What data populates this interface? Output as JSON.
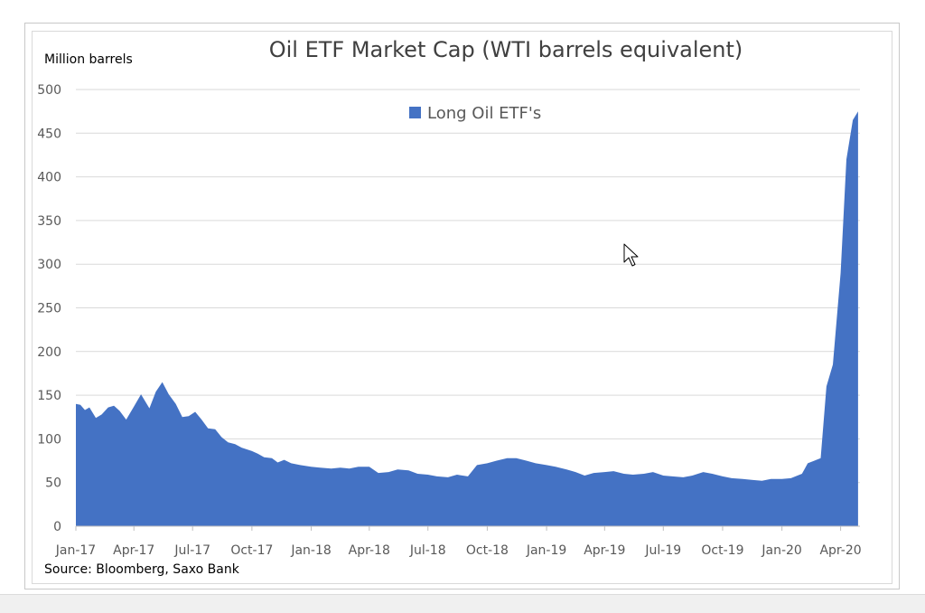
{
  "chart_data": {
    "type": "area",
    "title": "Oil ETF Market Cap (WTI barrels equivalent)",
    "ylabel": "Million barrels",
    "source": "Source: Bloomberg, Saxo Bank",
    "ylim": [
      0,
      500
    ],
    "yticks": [
      0,
      50,
      100,
      150,
      200,
      250,
      300,
      350,
      400,
      450,
      500
    ],
    "xlim": [
      "2017-01-01",
      "2020-05-01"
    ],
    "xtick_labels": [
      "Jan-17",
      "Apr-17",
      "Jul-17",
      "Oct-17",
      "Jan-18",
      "Apr-18",
      "Jul-18",
      "Oct-18",
      "Jan-19",
      "Apr-19",
      "Jul-19",
      "Oct-19",
      "Jan-20",
      "Apr-20"
    ],
    "xtick_dates": [
      "2017-01-01",
      "2017-04-01",
      "2017-07-01",
      "2017-10-01",
      "2018-01-01",
      "2018-04-01",
      "2018-07-01",
      "2018-10-01",
      "2019-01-01",
      "2019-04-01",
      "2019-07-01",
      "2019-10-01",
      "2020-01-01",
      "2020-04-01"
    ],
    "grid": true,
    "legend_position": "top-center",
    "series": [
      {
        "name": "Long Oil ETF's",
        "color": "#4472C4",
        "x": [
          "2017-01-01",
          "2017-01-08",
          "2017-01-15",
          "2017-01-22",
          "2017-02-01",
          "2017-02-10",
          "2017-02-20",
          "2017-03-01",
          "2017-03-10",
          "2017-03-20",
          "2017-04-01",
          "2017-04-12",
          "2017-04-25",
          "2017-05-05",
          "2017-05-15",
          "2017-05-25",
          "2017-06-05",
          "2017-06-15",
          "2017-06-25",
          "2017-07-05",
          "2017-07-15",
          "2017-07-25",
          "2017-08-05",
          "2017-08-15",
          "2017-08-25",
          "2017-09-05",
          "2017-09-15",
          "2017-10-01",
          "2017-10-10",
          "2017-10-20",
          "2017-11-01",
          "2017-11-10",
          "2017-11-20",
          "2017-12-01",
          "2017-12-15",
          "2018-01-01",
          "2018-01-15",
          "2018-02-01",
          "2018-02-15",
          "2018-03-01",
          "2018-03-15",
          "2018-04-01",
          "2018-04-15",
          "2018-05-01",
          "2018-05-15",
          "2018-06-01",
          "2018-06-15",
          "2018-07-01",
          "2018-07-15",
          "2018-08-01",
          "2018-08-15",
          "2018-09-01",
          "2018-09-15",
          "2018-10-01",
          "2018-10-15",
          "2018-11-01",
          "2018-11-15",
          "2018-12-01",
          "2018-12-15",
          "2019-01-01",
          "2019-01-15",
          "2019-02-01",
          "2019-02-15",
          "2019-03-01",
          "2019-03-15",
          "2019-04-01",
          "2019-04-15",
          "2019-05-01",
          "2019-05-15",
          "2019-06-01",
          "2019-06-15",
          "2019-07-01",
          "2019-07-15",
          "2019-08-01",
          "2019-08-15",
          "2019-09-01",
          "2019-09-15",
          "2019-10-01",
          "2019-10-15",
          "2019-11-01",
          "2019-11-15",
          "2019-12-01",
          "2019-12-15",
          "2020-01-01",
          "2020-01-15",
          "2020-02-01",
          "2020-02-10",
          "2020-02-20",
          "2020-03-01",
          "2020-03-10",
          "2020-03-20",
          "2020-04-01",
          "2020-04-10",
          "2020-04-20",
          "2020-04-28"
        ],
        "y": [
          140,
          139,
          133,
          136,
          124,
          128,
          136,
          138,
          132,
          122,
          137,
          151,
          135,
          154,
          165,
          151,
          140,
          125,
          126,
          131,
          122,
          112,
          111,
          102,
          96,
          94,
          90,
          86,
          83,
          79,
          78,
          73,
          76,
          72,
          70,
          68,
          67,
          66,
          67,
          66,
          68,
          68,
          61,
          62,
          65,
          64,
          60,
          59,
          57,
          56,
          59,
          57,
          70,
          72,
          75,
          78,
          78,
          75,
          72,
          70,
          68,
          65,
          62,
          58,
          61,
          62,
          63,
          60,
          59,
          60,
          62,
          58,
          57,
          56,
          58,
          62,
          60,
          57,
          55,
          54,
          53,
          52,
          54,
          54,
          55,
          60,
          72,
          75,
          78,
          160,
          185,
          290,
          420,
          465,
          475
        ]
      }
    ]
  }
}
